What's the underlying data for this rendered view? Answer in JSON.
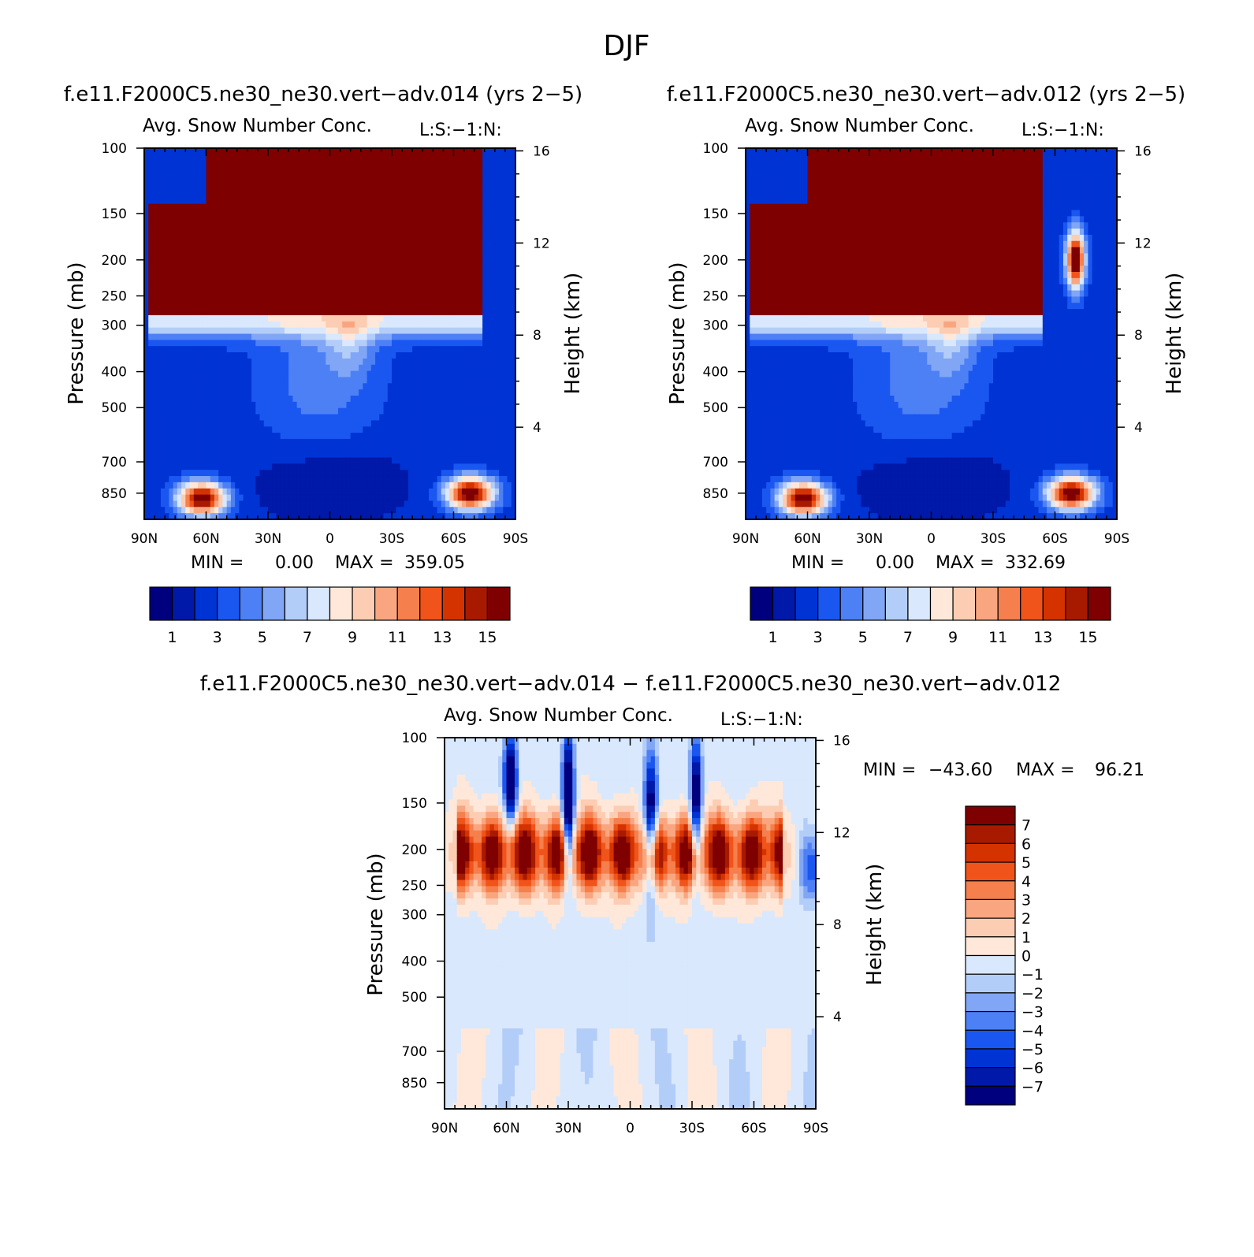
{
  "page_title": "DJF",
  "color_palettes": {
    "absolute": [
      "#00007f",
      "#0019a8",
      "#0033d4",
      "#1a57f0",
      "#4d80f5",
      "#80a6f5",
      "#b3cdf9",
      "#d9e8fc",
      "#ffe8d9",
      "#fccdb3",
      "#f9a680",
      "#f57f4d",
      "#f0541a",
      "#d43300",
      "#a81a00",
      "#7f0000"
    ],
    "difference": [
      "#7f0000",
      "#a81a00",
      "#d43300",
      "#f0541a",
      "#f57f4d",
      "#f9a680",
      "#fccdb3",
      "#ffe8d9",
      "#d9e8fc",
      "#b3cdf9",
      "#80a6f5",
      "#4d80f5",
      "#1a57f0",
      "#0033d4",
      "#0019a8",
      "#00007f"
    ]
  },
  "panels": [
    {
      "case_title": "f.e11.F2000C5.ne30_ne30.vert−adv.014 (yrs 2−5)",
      "var_title": "Avg. Snow Number Conc.",
      "units_tag": "L:S:−1:N:",
      "min_label": "MIN =",
      "min_value": "0.00",
      "max_label": "MAX =",
      "max_value": "359.05",
      "colorbar_labels": [
        "1",
        "3",
        "5",
        "7",
        "9",
        "11",
        "13",
        "15"
      ]
    },
    {
      "case_title": "f.e11.F2000C5.ne30_ne30.vert−adv.012 (yrs 2−5)",
      "var_title": "Avg. Snow Number Conc.",
      "units_tag": "L:S:−1:N:",
      "min_label": "MIN =",
      "min_value": "0.00",
      "max_label": "MAX =",
      "max_value": "332.69",
      "colorbar_labels": [
        "1",
        "3",
        "5",
        "7",
        "9",
        "11",
        "13",
        "15"
      ]
    },
    {
      "case_title": "f.e11.F2000C5.ne30_ne30.vert−adv.014 − f.e11.F2000C5.ne30_ne30.vert−adv.012",
      "var_title": "Avg. Snow Number Conc.",
      "units_tag": "L:S:−1:N:",
      "min_label": "MIN =",
      "min_value": "−43.60",
      "max_label": "MAX =",
      "max_value": "96.21",
      "colorbar_labels": [
        "7",
        "6",
        "5",
        "4",
        "3",
        "2",
        "1",
        "0",
        "−1",
        "−2",
        "−3",
        "−4",
        "−5",
        "−6",
        "−7"
      ]
    }
  ],
  "chart_data": [
    {
      "type": "heatmap",
      "title": "Avg. Snow Number Conc.",
      "case": "f.e11.F2000C5.ne30_ne30.vert−adv.014 (yrs 2−5)",
      "xlabel": "",
      "ylabel": "Pressure (mb)",
      "y2label": "Height (km)",
      "x_ticks": [
        "90N",
        "60N",
        "30N",
        "0",
        "30S",
        "60S",
        "90S"
      ],
      "x_tick_values": [
        90,
        60,
        30,
        0,
        -30,
        -60,
        -90
      ],
      "y_ticks": [
        "100",
        "150",
        "200",
        "250",
        "300",
        "400",
        "500",
        "700",
        "850"
      ],
      "y_tick_values": [
        100,
        150,
        200,
        250,
        300,
        400,
        500,
        700,
        850
      ],
      "y2_ticks": [
        "16",
        "12",
        "8",
        "4"
      ],
      "y2_tick_values": [
        16,
        12,
        8,
        4
      ],
      "xlim": [
        90,
        -90
      ],
      "ylim": [
        100,
        1000
      ],
      "levels": [
        1,
        2,
        3,
        4,
        5,
        6,
        7,
        8,
        9,
        10,
        11,
        12,
        13,
        14,
        15
      ],
      "min": 0.0,
      "max": 359.05,
      "features": [
        {
          "name": "upper-tropospheric maximum",
          "lat_from": 88,
          "lat_to": -75,
          "p_top": 100,
          "p_bottom": 290,
          "value": 20
        },
        {
          "name": "NH low-level maximum",
          "lat_center": 62,
          "p_center": 880,
          "value": 16
        },
        {
          "name": "SH low-level maximum",
          "lat_center": -68,
          "p_center": 850,
          "value": 16
        }
      ]
    },
    {
      "type": "heatmap",
      "title": "Avg. Snow Number Conc.",
      "case": "f.e11.F2000C5.ne30_ne30.vert−adv.012 (yrs 2−5)",
      "xlabel": "",
      "ylabel": "Pressure (mb)",
      "y2label": "Height (km)",
      "x_ticks": [
        "90N",
        "60N",
        "30N",
        "0",
        "30S",
        "60S",
        "90S"
      ],
      "x_tick_values": [
        90,
        60,
        30,
        0,
        -30,
        -60,
        -90
      ],
      "y_ticks": [
        "100",
        "150",
        "200",
        "250",
        "300",
        "400",
        "500",
        "700",
        "850"
      ],
      "y_tick_values": [
        100,
        150,
        200,
        250,
        300,
        400,
        500,
        700,
        850
      ],
      "y2_ticks": [
        "16",
        "12",
        "8",
        "4"
      ],
      "y2_tick_values": [
        16,
        12,
        8,
        4
      ],
      "xlim": [
        90,
        -90
      ],
      "ylim": [
        100,
        1000
      ],
      "levels": [
        1,
        2,
        3,
        4,
        5,
        6,
        7,
        8,
        9,
        10,
        11,
        12,
        13,
        14,
        15
      ],
      "min": 0.0,
      "max": 332.69,
      "features": [
        {
          "name": "upper-tropospheric maximum",
          "lat_from": 88,
          "lat_to": -55,
          "p_top": 100,
          "p_bottom": 290,
          "value": 20
        },
        {
          "name": "SH isolated maximum",
          "lat_center": -70,
          "p_center": 200,
          "value": 16
        },
        {
          "name": "NH low-level maximum",
          "lat_center": 62,
          "p_center": 880,
          "value": 16
        },
        {
          "name": "SH low-level maximum",
          "lat_center": -68,
          "p_center": 850,
          "value": 16
        }
      ]
    },
    {
      "type": "heatmap",
      "title": "Avg. Snow Number Conc.",
      "case": "f.e11.F2000C5.ne30_ne30.vert−adv.014 − f.e11.F2000C5.ne30_ne30.vert−adv.012",
      "xlabel": "",
      "ylabel": "Pressure (mb)",
      "y2label": "Height (km)",
      "x_ticks": [
        "90N",
        "60N",
        "30N",
        "0",
        "30S",
        "60S",
        "90S"
      ],
      "x_tick_values": [
        90,
        60,
        30,
        0,
        -30,
        -60,
        -90
      ],
      "y_ticks": [
        "100",
        "150",
        "200",
        "250",
        "300",
        "400",
        "500",
        "700",
        "850"
      ],
      "y_tick_values": [
        100,
        150,
        200,
        250,
        300,
        400,
        500,
        700,
        850
      ],
      "y2_ticks": [
        "16",
        "12",
        "8",
        "4"
      ],
      "y2_tick_values": [
        16,
        12,
        8,
        4
      ],
      "xlim": [
        90,
        -90
      ],
      "ylim": [
        100,
        1000
      ],
      "levels": [
        -7,
        -6,
        -5,
        -4,
        -3,
        -2,
        -1,
        0,
        1,
        2,
        3,
        4,
        5,
        6,
        7
      ],
      "min": -43.6,
      "max": 96.21,
      "features": [
        {
          "name": "positive difference band",
          "lat_from": 85,
          "lat_to": -75,
          "p_top": 150,
          "p_bottom": 260,
          "value": 8
        },
        {
          "name": "NH upper negative",
          "lat_center": 58,
          "p_center": 130,
          "value": -8
        },
        {
          "name": "equatorial upper negative streaks",
          "lat_center": -10,
          "p_center": 160,
          "value": -8
        }
      ]
    }
  ]
}
